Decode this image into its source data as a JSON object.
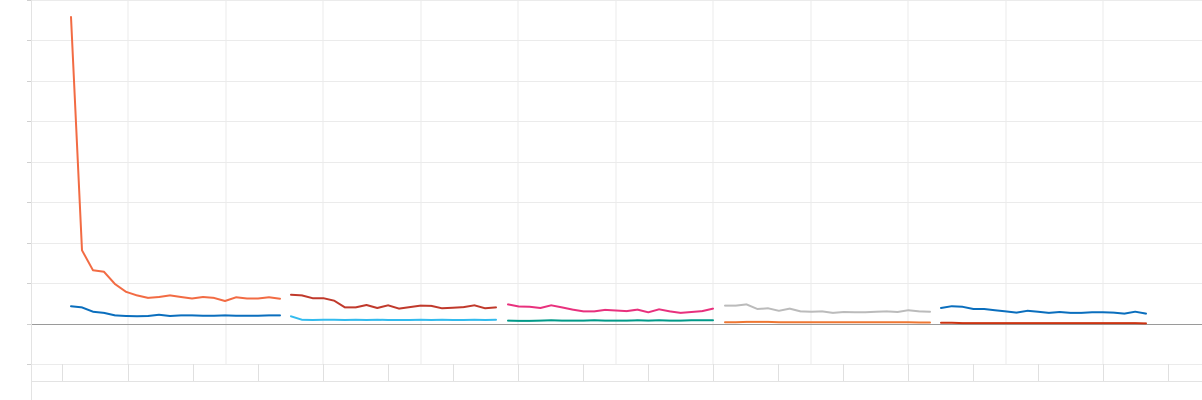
{
  "chart_data": {
    "type": "line",
    "title": "",
    "xlabel": "",
    "ylabel": "",
    "grid": true,
    "legend": "none",
    "panels": [
      {
        "series": [
          {
            "color": "#f26b43",
            "values": [
              100,
              24,
              17.5,
              17,
              13,
              10.5,
              9.3,
              8.5,
              8.8,
              9.3,
              8.8,
              8.3,
              8.8,
              8.5,
              7.5,
              8.7,
              8.3,
              8.3,
              8.7,
              8.2
            ]
          },
          {
            "color": "#0a6ebd",
            "values": [
              5.8,
              5.4,
              4,
              3.6,
              2.8,
              2.6,
              2.5,
              2.6,
              3,
              2.6,
              2.8,
              2.8,
              2.7,
              2.7,
              2.8,
              2.7,
              2.7,
              2.7,
              2.8,
              2.8
            ]
          }
        ]
      },
      {
        "series": [
          {
            "color": "#c0392b",
            "values": [
              9.5,
              9.3,
              8.4,
              8.4,
              7.6,
              5.4,
              5.4,
              6.2,
              5.2,
              6.1,
              5,
              5.5,
              6,
              5.9,
              5.1,
              5.3,
              5.5,
              6.1,
              5.1,
              5.4
            ]
          },
          {
            "color": "#33bbee",
            "values": [
              2.5,
              1.4,
              1.3,
              1.4,
              1.4,
              1.3,
              1.4,
              1.3,
              1.4,
              1.3,
              1.3,
              1.3,
              1.4,
              1.3,
              1.4,
              1.3,
              1.3,
              1.4,
              1.3,
              1.4
            ]
          }
        ]
      },
      {
        "series": [
          {
            "color": "#e8317d",
            "values": [
              6.4,
              5.7,
              5.6,
              5.2,
              6.1,
              5.4,
              4.7,
              4.1,
              4.1,
              4.6,
              4.4,
              4.2,
              4.7,
              3.8,
              4.8,
              4.1,
              3.6,
              3.9,
              4.2,
              5
            ]
          },
          {
            "color": "#009988",
            "values": [
              1.1,
              1,
              1,
              1.1,
              1.2,
              1.1,
              1.1,
              1.1,
              1.2,
              1.1,
              1.1,
              1.1,
              1.2,
              1.1,
              1.2,
              1.1,
              1.1,
              1.2,
              1.2,
              1.2
            ]
          }
        ]
      },
      {
        "series": [
          {
            "color": "#bbbbbb",
            "values": [
              6,
              6,
              6.4,
              4.9,
              5.1,
              4.3,
              5,
              4.1,
              4,
              4.1,
              3.6,
              3.9,
              3.8,
              3.8,
              4,
              4.1,
              3.9,
              4.5,
              4.1,
              4
            ]
          },
          {
            "color": "#ee7733",
            "values": [
              0.6,
              0.6,
              0.7,
              0.7,
              0.7,
              0.6,
              0.6,
              0.6,
              0.6,
              0.6,
              0.6,
              0.6,
              0.6,
              0.6,
              0.6,
              0.6,
              0.6,
              0.6,
              0.5,
              0.5
            ]
          }
        ]
      },
      {
        "series": [
          {
            "color": "#0a6ebd",
            "values": [
              5.2,
              5.8,
              5.6,
              4.9,
              4.9,
              4.5,
              4.1,
              3.7,
              4.3,
              4,
              3.6,
              3.9,
              3.6,
              3.6,
              3.8,
              3.8,
              3.7,
              3.4,
              4,
              3.4
            ]
          },
          {
            "color": "#cc3311",
            "values": [
              0.4,
              0.4,
              0.3,
              0.3,
              0.3,
              0.3,
              0.3,
              0.3,
              0.3,
              0.3,
              0.3,
              0.3,
              0.3,
              0.3,
              0.3,
              0.3,
              0.3,
              0.3,
              0.3,
              0.2
            ]
          }
        ]
      }
    ]
  }
}
